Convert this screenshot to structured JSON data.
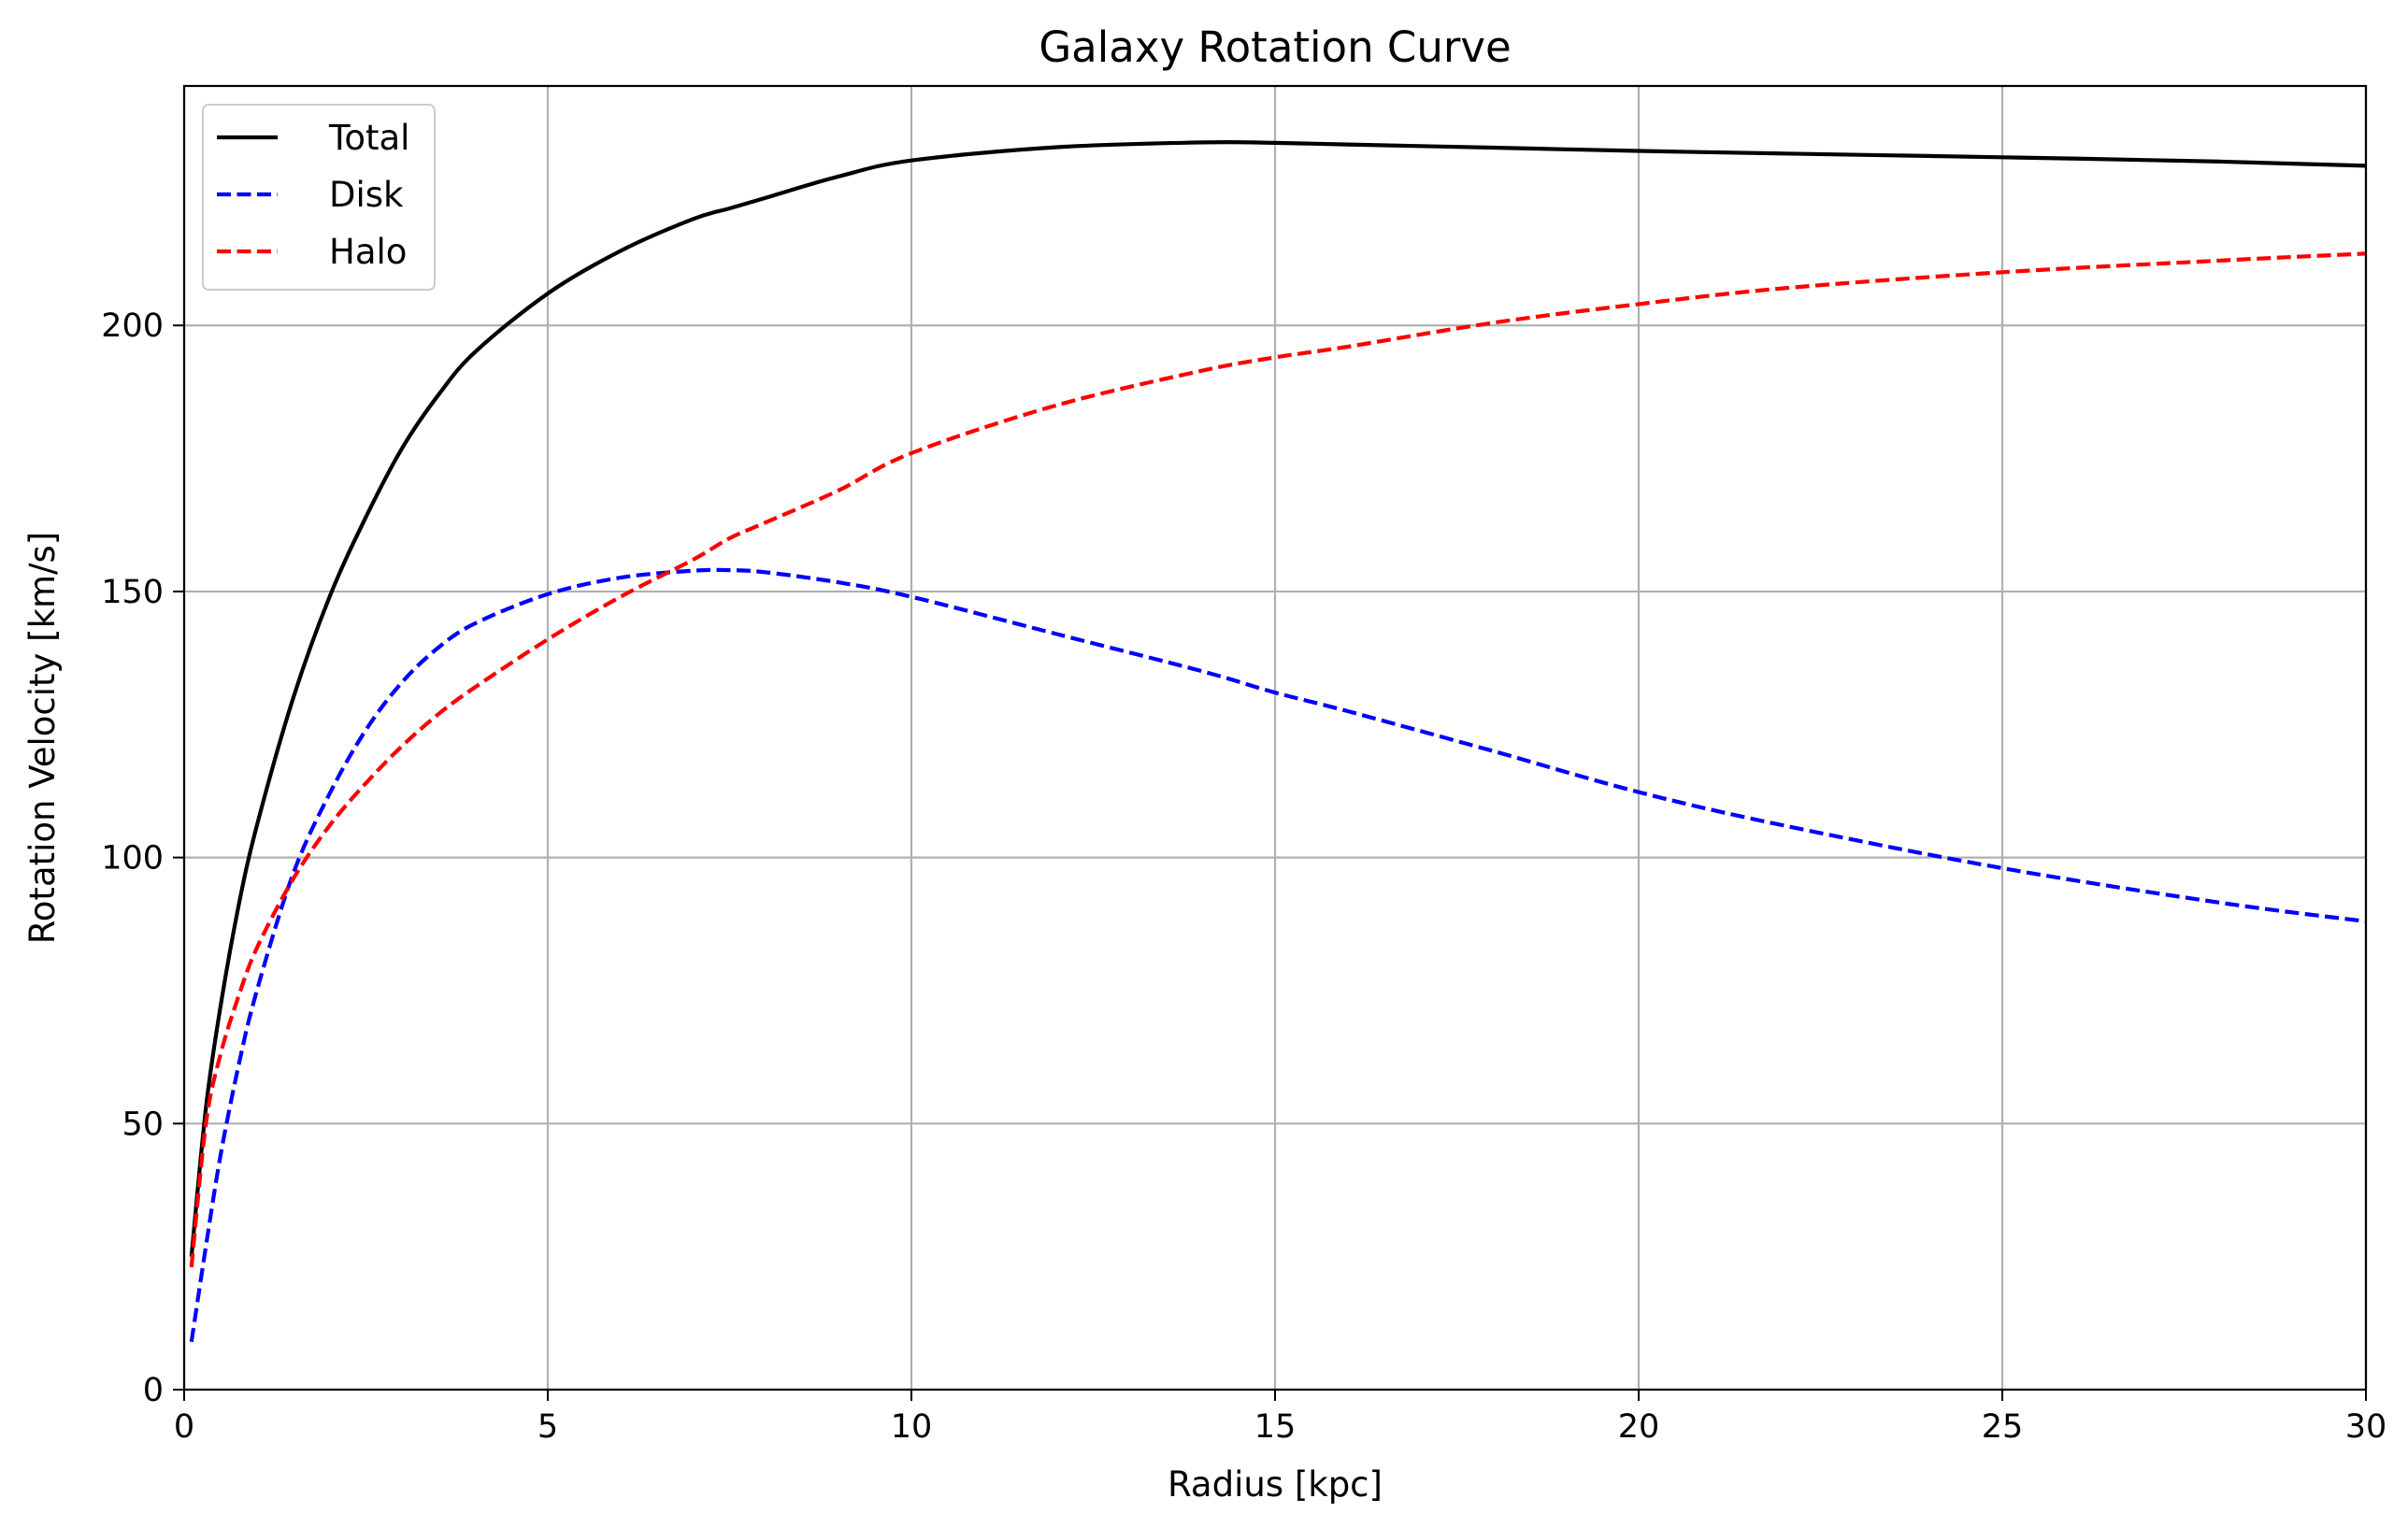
{
  "chart_data": {
    "type": "line",
    "title": "Galaxy Rotation Curve",
    "xlabel": "Radius [kpc]",
    "ylabel": "Rotation Velocity [km/s]",
    "xlim": [
      0,
      30
    ],
    "ylim": [
      0,
      245
    ],
    "xticks": [
      0,
      5,
      10,
      15,
      20,
      25,
      30
    ],
    "yticks": [
      0,
      50,
      100,
      150,
      200
    ],
    "grid": true,
    "legend_position": "top-left",
    "x": [
      0.1,
      0.3,
      0.5,
      0.75,
      1,
      1.5,
      2,
      2.5,
      3,
      3.5,
      4,
      5,
      6,
      7,
      7.5,
      8,
      9,
      10,
      12,
      14,
      15,
      16,
      18,
      20,
      22,
      25,
      28,
      30
    ],
    "series": [
      {
        "name": "Total",
        "color": "#000000",
        "dash": "solid",
        "values": [
          25,
          53,
          72,
          91,
          106,
          130,
          149,
          164,
          177,
          187,
          195,
          206,
          214,
          220,
          222,
          224,
          228,
          231,
          233.5,
          234.4,
          234.3,
          234,
          233.4,
          232.8,
          232.3,
          231.6,
          230.8,
          230
        ]
      },
      {
        "name": "Disk",
        "color": "#0000ff",
        "dash": "dashed",
        "values": [
          9,
          27,
          44,
          61,
          75,
          97,
          112,
          124,
          133,
          139.5,
          144,
          149.5,
          152.6,
          153.9,
          154,
          153.6,
          151.7,
          149,
          142,
          135,
          131,
          127.5,
          120,
          112.3,
          106,
          98,
          91.5,
          88
        ]
      },
      {
        "name": "Halo",
        "color": "#ff0000",
        "dash": "dashed",
        "values": [
          23,
          50,
          63,
          74,
          83,
          96,
          106,
          114,
          121,
          127,
          132,
          141,
          149,
          156,
          160,
          163,
          169,
          176,
          185,
          191.5,
          194,
          196,
          200.5,
          204,
          207,
          210,
          212.2,
          213.5
        ]
      }
    ]
  }
}
